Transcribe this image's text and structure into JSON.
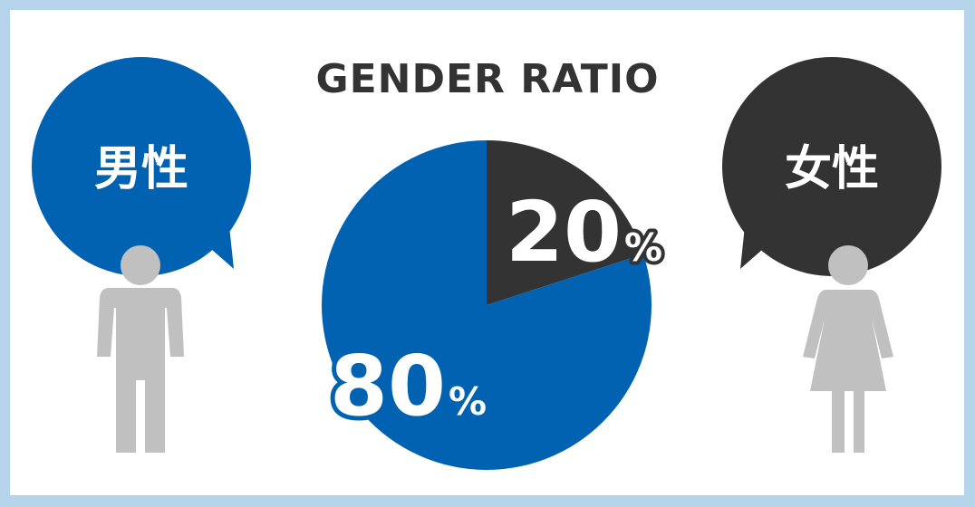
{
  "chart_data": {
    "type": "pie",
    "title": "GENDER RATIO",
    "slices": [
      {
        "label": "女性",
        "value": 20,
        "display_value": "20",
        "unit": "%",
        "color": "#333333"
      },
      {
        "label": "男性",
        "value": 80,
        "display_value": "80",
        "unit": "%",
        "color": "#0062b1"
      }
    ]
  },
  "bubbles": {
    "male": {
      "label": "男性",
      "color": "#0062b1"
    },
    "female": {
      "label": "女性",
      "color": "#333333"
    }
  },
  "colors": {
    "border": "#b5d3e9",
    "figure": "#c0c0c0",
    "background": "#ffffff"
  },
  "icons": {
    "male": "male-person-icon",
    "female": "female-person-icon"
  }
}
